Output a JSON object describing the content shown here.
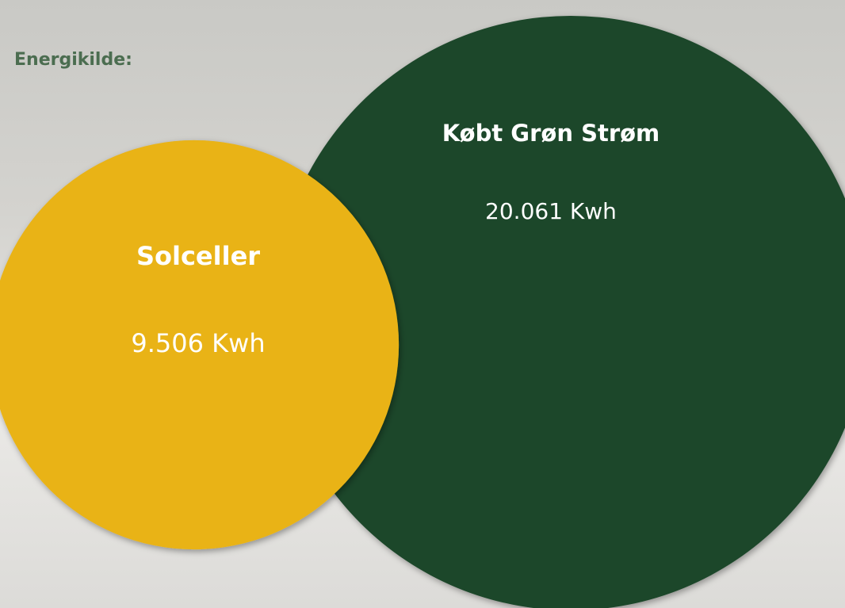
{
  "chart_data": {
    "type": "bubble",
    "title": "Energikilde:",
    "categories": [
      "Solceller",
      "Købt Grøn Strøm"
    ],
    "values": [
      9506,
      20061
    ],
    "value_labels": [
      "9.506 Kwh",
      "20.061 Kwh"
    ],
    "colors": [
      "#e9b318",
      "#1c462a"
    ]
  }
}
